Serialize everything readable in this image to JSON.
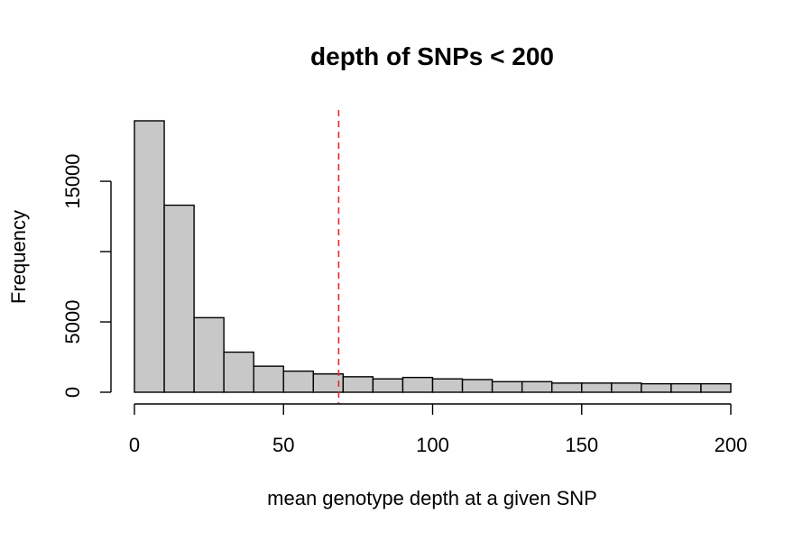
{
  "chart_data": {
    "type": "bar",
    "title": "depth of SNPs < 200",
    "xlabel": "mean genotype depth at a given SNP",
    "ylabel": "Frequency",
    "bin_edges": [
      0,
      10,
      20,
      30,
      40,
      50,
      60,
      70,
      80,
      90,
      100,
      110,
      120,
      130,
      140,
      150,
      160,
      170,
      180,
      190,
      200
    ],
    "values": [
      19300,
      13300,
      5300,
      2850,
      1850,
      1500,
      1300,
      1100,
      950,
      1050,
      950,
      900,
      750,
      750,
      650,
      650,
      650,
      600,
      600,
      600
    ],
    "xlim": [
      0,
      200
    ],
    "ylim": [
      0,
      19300
    ],
    "x_ticks": [
      0,
      50,
      100,
      150,
      200
    ],
    "x_tick_labels": [
      "0",
      "50",
      "100",
      "150",
      "200"
    ],
    "y_ticks": [
      0,
      5000,
      10000,
      15000
    ],
    "y_tick_labels": [
      "0",
      "5000",
      "",
      "15000"
    ],
    "reference_line": {
      "x": 68.5,
      "style": "dashed"
    },
    "grid": false,
    "colors": {
      "bar_fill": "#c8c8c8",
      "bar_stroke": "#000000",
      "reference_line": "#e8262b"
    }
  }
}
